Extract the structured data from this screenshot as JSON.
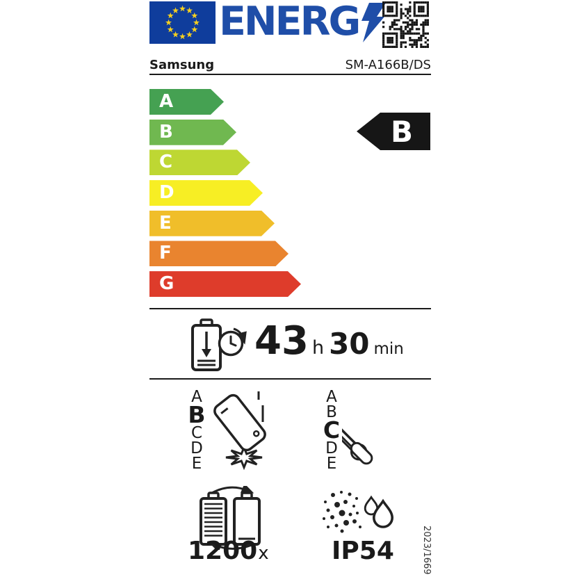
{
  "header": {
    "logo_text": "ENERG",
    "brand": "Samsung",
    "model": "SM-A166B/DS"
  },
  "colors": {
    "brand_blue": "#1f4ea8",
    "flag_blue": "#0f3d9c",
    "star_yellow": "#f5d020",
    "ink": "#1a1a1a",
    "rating_black": "#161616"
  },
  "efficiency_scale": {
    "grades": [
      {
        "letter": "A",
        "color": "#45a152"
      },
      {
        "letter": "B",
        "color": "#70b850"
      },
      {
        "letter": "C",
        "color": "#bed733"
      },
      {
        "letter": "D",
        "color": "#f7ee24"
      },
      {
        "letter": "E",
        "color": "#f0be2a"
      },
      {
        "letter": "F",
        "color": "#e9842f"
      },
      {
        "letter": "G",
        "color": "#de3c2b"
      }
    ],
    "rating": "B"
  },
  "battery_endurance": {
    "hours": "43",
    "hours_unit": "h",
    "minutes": "30",
    "minutes_unit": "min"
  },
  "drop_reliability": {
    "letters": [
      "A",
      "B",
      "C",
      "D",
      "E"
    ],
    "rating": "B"
  },
  "repairability": {
    "letters": [
      "A",
      "B",
      "C",
      "D",
      "E"
    ],
    "rating": "C"
  },
  "battery_cycles": {
    "value": "1200",
    "unit": "x"
  },
  "ingress_protection": {
    "value": "IP54"
  },
  "regulation": "2023/1669",
  "icons": {
    "eu_flag": "eu-flag-icon",
    "lightning": "lightning-bolt-icon",
    "qr": "qr-code",
    "battery_endurance": "battery-endurance-icon",
    "drop_reliability": "falling-phone-icon",
    "repairability": "repair-tools-icon",
    "battery_cycles": "battery-cycles-icon",
    "ingress_protection": "dust-and-water-icon"
  }
}
